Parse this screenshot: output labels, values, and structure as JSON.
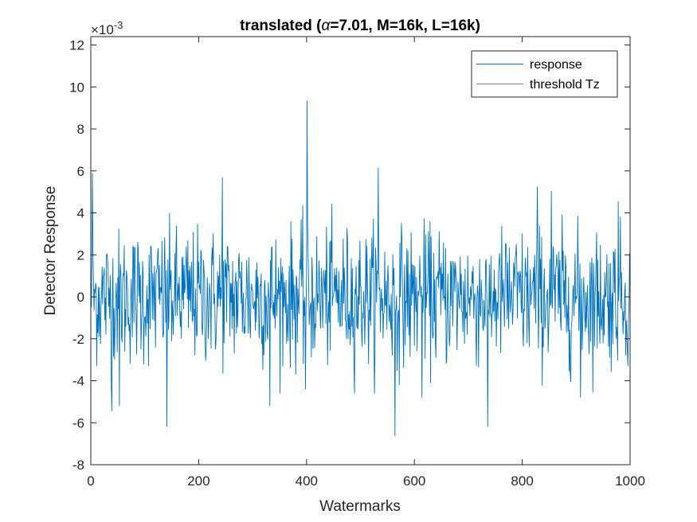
{
  "chart_data": {
    "type": "line",
    "title": "translated (α=7.01, M=16k, L=16k)",
    "title_parts": [
      "translated (",
      "α",
      "=7.01, M=16k, L=16k)"
    ],
    "xlabel": "Watermarks",
    "ylabel": "Detector Response",
    "y_exponent_label": "×10",
    "y_exponent_base": "×10",
    "y_exponent_power": "-3",
    "xlim": [
      0,
      1000
    ],
    "ylim": [
      -8,
      12.4
    ],
    "y_scale_multiplier": 0.001,
    "xticks": [
      0,
      200,
      400,
      600,
      800,
      1000
    ],
    "xtick_labels": [
      "0",
      "200",
      "400",
      "600",
      "800",
      "1000"
    ],
    "yticks": [
      -8,
      -6,
      -4,
      -2,
      0,
      2,
      4,
      6,
      8,
      10,
      12
    ],
    "ytick_labels": [
      "-8",
      "-6",
      "-4",
      "-2",
      "0",
      "2",
      "4",
      "6",
      "8",
      "10",
      "12"
    ],
    "grid": false,
    "legend_position": "top-right",
    "series": [
      {
        "name": "response",
        "color": "#0072BD",
        "points_description": "1000 noisy samples around 0 (values in units of 1e-3)",
        "n": 1000,
        "peaks": [
          {
            "x": 400,
            "y": 9.35
          },
          {
            "x": 243,
            "y": 5.7
          },
          {
            "x": 532,
            "y": 6.15
          },
          {
            "x": 2,
            "y": 5.9
          },
          {
            "x": 827,
            "y": 5.25
          },
          {
            "x": 853,
            "y": 5.05
          },
          {
            "x": 977,
            "y": 4.55
          },
          {
            "x": 140,
            "y": -6.2
          },
          {
            "x": 563,
            "y": -6.65
          },
          {
            "x": 735,
            "y": -6.2
          },
          {
            "x": 38,
            "y": -5.45
          },
          {
            "x": 52,
            "y": -5.2
          },
          {
            "x": 331,
            "y": -5.2
          },
          {
            "x": 613,
            "y": -4.8
          },
          {
            "x": 907,
            "y": -4.8
          },
          {
            "x": 397,
            "y": -4.4
          }
        ]
      },
      {
        "name": "threshold Tz",
        "color": "#808080",
        "values": []
      }
    ]
  }
}
